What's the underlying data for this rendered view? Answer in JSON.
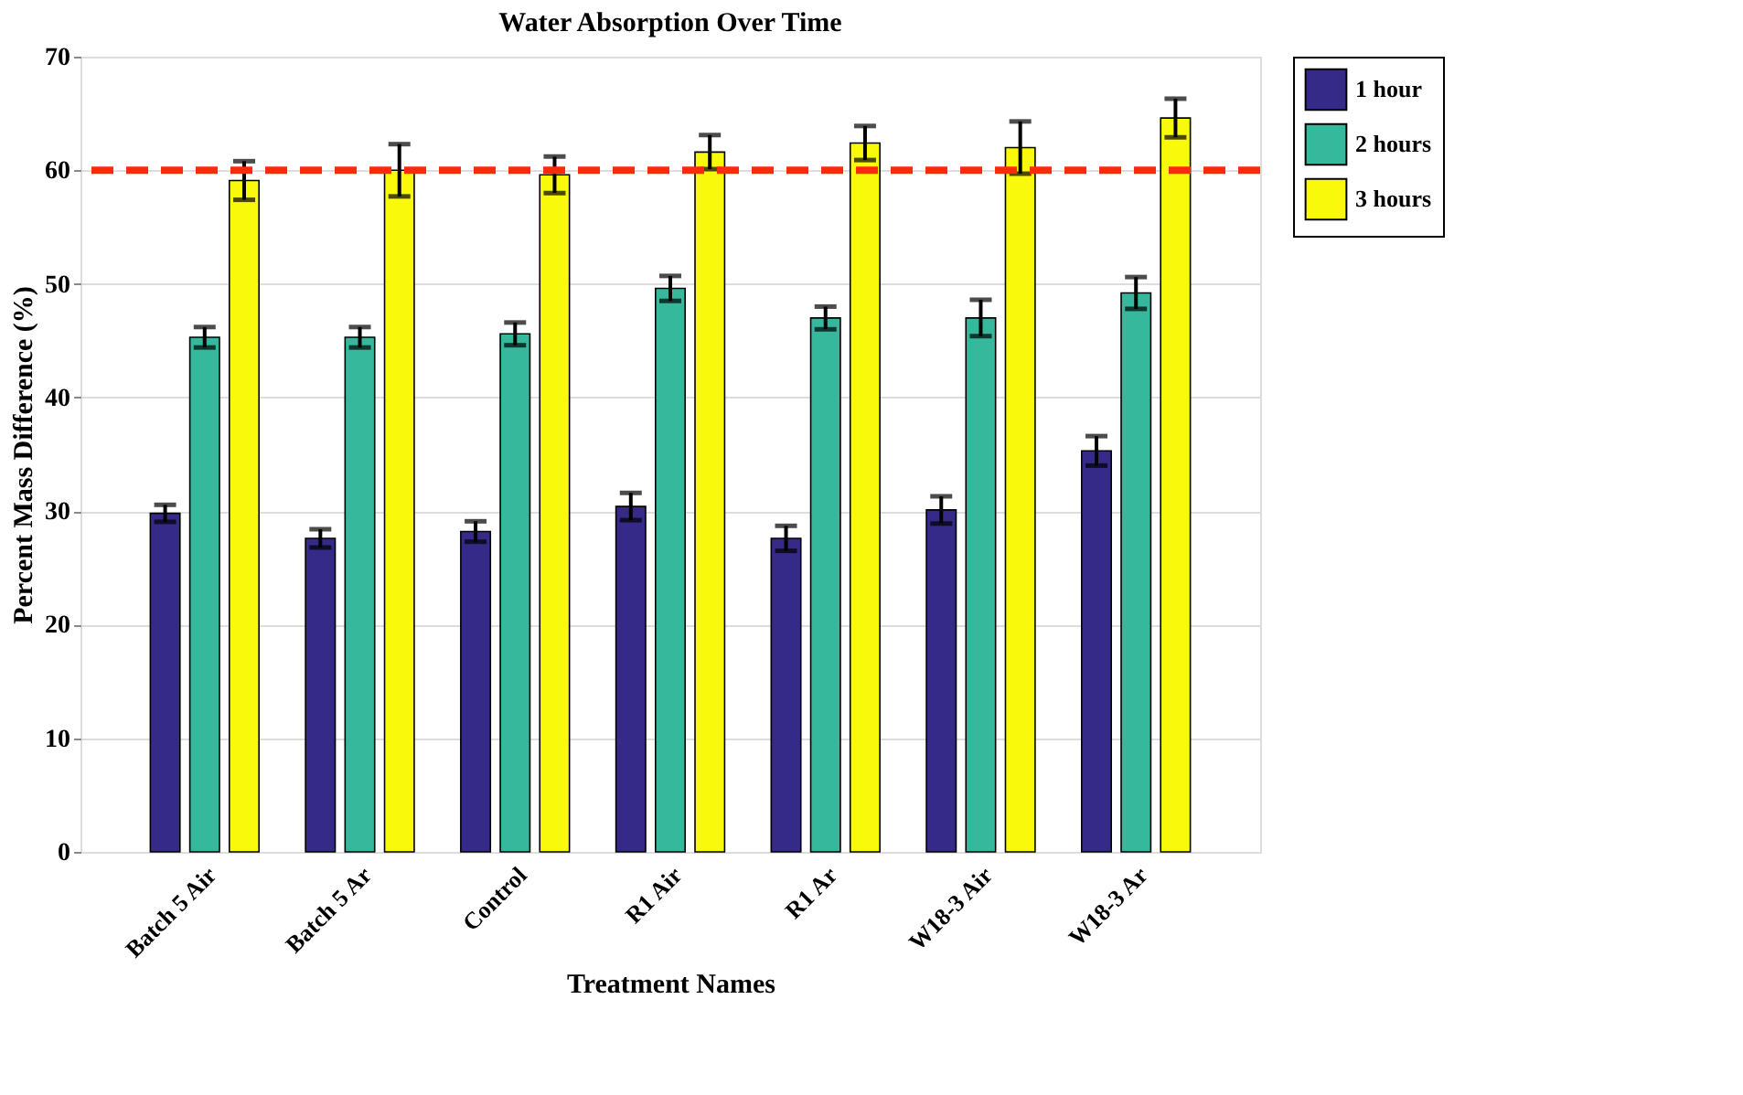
{
  "chart_data": {
    "type": "bar",
    "title": "Water Absorption Over Time",
    "xlabel": "Treatment Names",
    "ylabel": "Percent Mass Difference (%)",
    "categories": [
      "Batch 5 Air",
      "Batch 5 Ar",
      "Control",
      "R1 Air",
      "R1 Ar",
      "W18-3 Air",
      "W18-3 Ar"
    ],
    "series": [
      {
        "name": "1 hour",
        "color": "#352a87",
        "values": [
          29.8,
          27.6,
          28.2,
          30.4,
          27.6,
          30.1,
          35.3
        ],
        "errors": [
          0.75,
          0.8,
          0.9,
          1.2,
          1.1,
          1.2,
          1.3
        ]
      },
      {
        "name": "2 hours",
        "color": "#36b89c",
        "values": [
          45.3,
          45.3,
          45.6,
          49.6,
          47.0,
          47.0,
          49.2
        ],
        "errors": [
          0.9,
          0.9,
          1.0,
          1.1,
          1.0,
          1.6,
          1.4
        ]
      },
      {
        "name": "3 hours",
        "color": "#f9f90b",
        "values": [
          59.1,
          60.0,
          59.6,
          61.6,
          62.4,
          62.0,
          64.6
        ],
        "errors": [
          1.7,
          2.3,
          1.6,
          1.5,
          1.5,
          2.3,
          1.7
        ]
      }
    ],
    "ylim": [
      0,
      70
    ],
    "yticks": [
      0,
      10,
      20,
      30,
      40,
      50,
      60,
      70
    ],
    "ref_lines": [
      {
        "axis": "y",
        "value": 60,
        "color": "#ff2a0a",
        "line_style": "dashed"
      }
    ],
    "grid": "y",
    "legend": "top right"
  }
}
